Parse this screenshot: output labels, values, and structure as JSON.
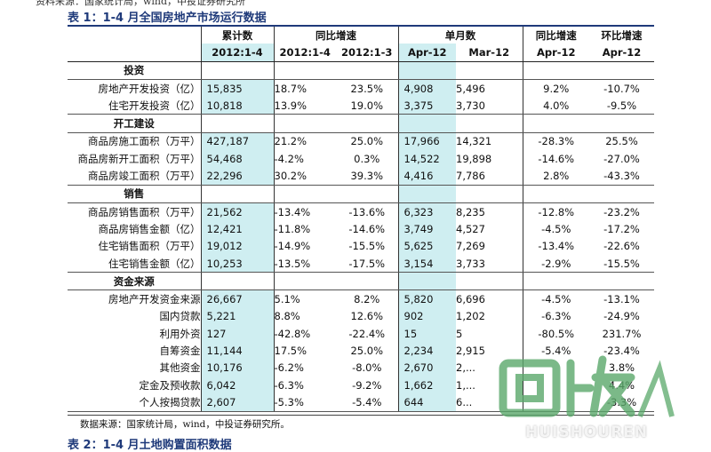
{
  "top_cut_text": "资料来源：国家统计局，wind，中投证券研究所",
  "title": "表 1：1-4 月全国房地产市场运行数据",
  "header": {
    "group_cumulative": "累计数",
    "group_yoy": "同比增速",
    "group_monthly": "单月数",
    "group_month_yoy": "同比增速",
    "group_mom": "环比增速",
    "periods": [
      "2012:1-4",
      "2012:1-4",
      "2012:1-3",
      "Apr-12",
      "Mar-12",
      "Apr-12",
      "Apr-12"
    ]
  },
  "sections": [
    {
      "name": "投资",
      "rows": [
        {
          "label": "房地产开发投资（亿）",
          "values": [
            "15,835",
            "18.7%",
            "23.5%",
            "4,908",
            "5,496",
            "9.2%",
            "-10.7%"
          ]
        },
        {
          "label": "住宅开发投资（亿）",
          "values": [
            "10,818",
            "13.9%",
            "19.0%",
            "3,375",
            "3,730",
            "4.0%",
            "-9.5%"
          ]
        }
      ]
    },
    {
      "name": "开工建设",
      "rows": [
        {
          "label": "商品房施工面积（万平）",
          "values": [
            "427,187",
            "21.2%",
            "25.0%",
            "17,966",
            "14,321",
            "-28.3%",
            "25.5%"
          ]
        },
        {
          "label": "商品房新开工面积（万平）",
          "values": [
            "54,468",
            "-4.2%",
            "0.3%",
            "14,522",
            "19,898",
            "-14.6%",
            "-27.0%"
          ]
        },
        {
          "label": "商品房竣工面积（万平）",
          "values": [
            "22,296",
            "30.2%",
            "39.3%",
            "4,416",
            "7,786",
            "2.8%",
            "-43.3%"
          ]
        }
      ]
    },
    {
      "name": "销售",
      "rows": [
        {
          "label": "商品房销售面积（万平）",
          "values": [
            "21,562",
            "-13.4%",
            "-13.6%",
            "6,323",
            "8,235",
            "-12.8%",
            "-23.2%"
          ]
        },
        {
          "label": "商品房销售金额（亿）",
          "values": [
            "12,421",
            "-11.8%",
            "-14.6%",
            "3,749",
            "4,527",
            "-4.5%",
            "-17.2%"
          ]
        },
        {
          "label": "住宅销售面积（万平）",
          "values": [
            "19,012",
            "-14.9%",
            "-15.5%",
            "5,625",
            "7,269",
            "-13.4%",
            "-22.6%"
          ]
        },
        {
          "label": "住宅销售金额（亿）",
          "values": [
            "10,253",
            "-13.5%",
            "-17.5%",
            "3,154",
            "3,733",
            "-2.9%",
            "-15.5%"
          ]
        }
      ]
    },
    {
      "name": "资金来源",
      "rows": [
        {
          "label": "房地产开发资金来源",
          "values": [
            "26,667",
            "5.1%",
            "8.2%",
            "5,820",
            "6,696",
            "-4.5%",
            "-13.1%"
          ]
        },
        {
          "label": "国内贷款",
          "values": [
            "5,221",
            "8.8%",
            "12.6%",
            "902",
            "1,202",
            "-6.3%",
            "-24.9%"
          ]
        },
        {
          "label": "利用外资",
          "values": [
            "127",
            "-42.8%",
            "-22.4%",
            "15",
            "5",
            "-80.5%",
            "231.7%"
          ]
        },
        {
          "label": "自筹资金",
          "values": [
            "11,144",
            "17.5%",
            "25.0%",
            "2,234",
            "2,915",
            "-5.4%",
            "-23.4%"
          ]
        },
        {
          "label": "其他资金",
          "values": [
            "10,176",
            "-6.2%",
            "-8.0%",
            "2,670",
            "2,...",
            "",
            "3.8%"
          ]
        },
        {
          "label": "定金及预收款",
          "values": [
            "6,042",
            "-6.3%",
            "-9.2%",
            "1,662",
            "1,...",
            "",
            "4.4%"
          ]
        },
        {
          "label": "个人按揭贷款",
          "values": [
            "2,607",
            "-5.3%",
            "-5.4%",
            "644",
            "6...",
            "",
            "-3.3%"
          ]
        }
      ]
    }
  ],
  "source": "数据来源：国家统计局，wind，中投证券研究所。",
  "next_title": "表 2：1-4 月土地购置面积数据",
  "watermark": {
    "glyphs": "回收",
    "text": "HUISHOUREN"
  },
  "colors": {
    "highlight": "#cfeef1",
    "title_blue": "#1f3a7a",
    "watermark_green": "#5aa86a"
  }
}
